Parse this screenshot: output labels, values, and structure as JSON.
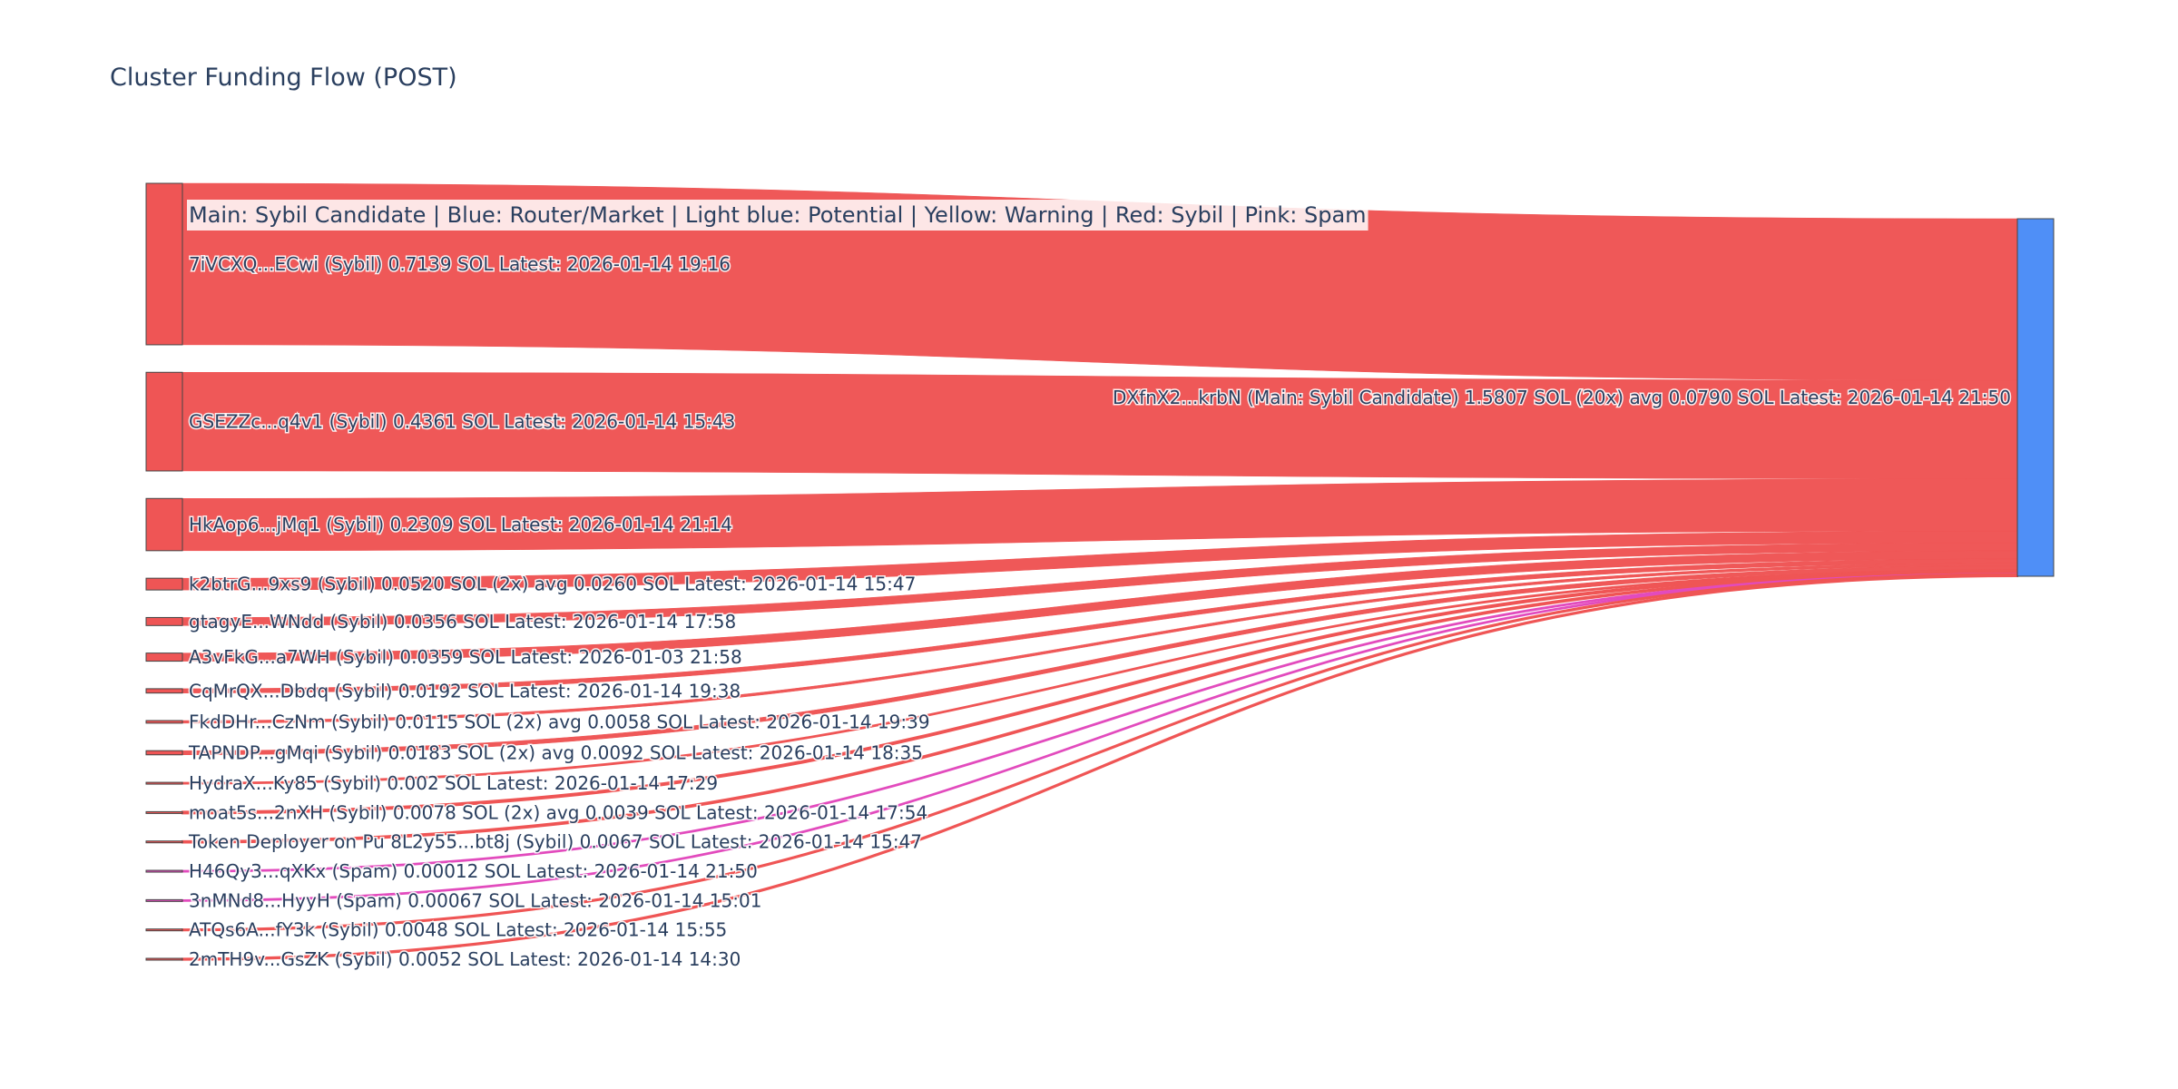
{
  "chart_data": {
    "type": "sankey",
    "title": "Cluster Funding Flow (POST)",
    "legend_text": "Main: Sybil Candidate  |  Blue: Router/Market | Light blue: Potential | Yellow: Warning | Red: Sybil | Pink: Spam",
    "target": {
      "label": "DXfnX2...krbN (Main: Sybil Candidate) 1.5807 SOL (20x) avg 0.0790 SOL Latest: 2026-01-14 21:50",
      "value": 1.5807,
      "color": "#4f8ff7"
    },
    "sources": [
      {
        "label": "7iVCXQ...ECwi (Sybil) 0.7139 SOL Latest: 2026-01-14 19:16",
        "value": 0.7139,
        "category": "Sybil"
      },
      {
        "label": "GSEZZc...q4v1 (Sybil) 0.4361 SOL Latest: 2026-01-14 15:43",
        "value": 0.4361,
        "category": "Sybil"
      },
      {
        "label": "HkAop6...jMq1 (Sybil) 0.2309 SOL Latest: 2026-01-14 21:14",
        "value": 0.2309,
        "category": "Sybil"
      },
      {
        "label": "k2btrG...9xs9 (Sybil) 0.0520 SOL (2x) avg 0.0260 SOL Latest: 2026-01-14 15:47",
        "value": 0.052,
        "category": "Sybil"
      },
      {
        "label": "gtagyE...WNdd (Sybil) 0.0356 SOL Latest: 2026-01-14 17:58",
        "value": 0.0356,
        "category": "Sybil"
      },
      {
        "label": "A3vFkG...a7WH (Sybil) 0.0359 SOL Latest: 2026-01-03 21:58",
        "value": 0.0359,
        "category": "Sybil"
      },
      {
        "label": "CqMrQX...Dbdq (Sybil) 0.0192 SOL Latest: 2026-01-14 19:38",
        "value": 0.0192,
        "category": "Sybil"
      },
      {
        "label": "FkdDHr...CzNm (Sybil) 0.0115 SOL (2x) avg 0.0058 SOL Latest: 2026-01-14 19:39",
        "value": 0.0115,
        "category": "Sybil"
      },
      {
        "label": "TAPNDP...gMqi (Sybil) 0.0183 SOL (2x) avg 0.0092 SOL Latest: 2026-01-14 18:35",
        "value": 0.0183,
        "category": "Sybil"
      },
      {
        "label": "HydraX...Ky85 (Sybil) 0.002 SOL Latest: 2026-01-14 17:29",
        "value": 0.002,
        "category": "Sybil"
      },
      {
        "label": "moat5s...2nXH (Sybil) 0.0078 SOL (2x) avg 0.0039 SOL Latest: 2026-01-14 17:54",
        "value": 0.0078,
        "category": "Sybil"
      },
      {
        "label": "Token Deployer on Pu 8L2y55...bt8j (Sybil) 0.0067 SOL Latest: 2026-01-14 15:47",
        "value": 0.0067,
        "category": "Sybil"
      },
      {
        "label": "H46Qy3...qXKx (Spam) 0.00012 SOL Latest: 2026-01-14 21:50",
        "value": 0.00012,
        "category": "Spam"
      },
      {
        "label": "3nMNd8...HyyH (Spam) 0.00067 SOL Latest: 2026-01-14 15:01",
        "value": 0.00067,
        "category": "Spam"
      },
      {
        "label": "ATQs6A...fY3k (Sybil) 0.0048 SOL Latest: 2026-01-14 15:55",
        "value": 0.0048,
        "category": "Sybil"
      },
      {
        "label": "2mTH9v...GsZK (Sybil) 0.0052 SOL Latest: 2026-01-14 14:30",
        "value": 0.0052,
        "category": "Sybil"
      }
    ],
    "colors": {
      "Sybil": "#ef5555",
      "Spam": "#e24bbd",
      "Router": "#4f8ff7",
      "text": "#2a3f5f"
    }
  }
}
